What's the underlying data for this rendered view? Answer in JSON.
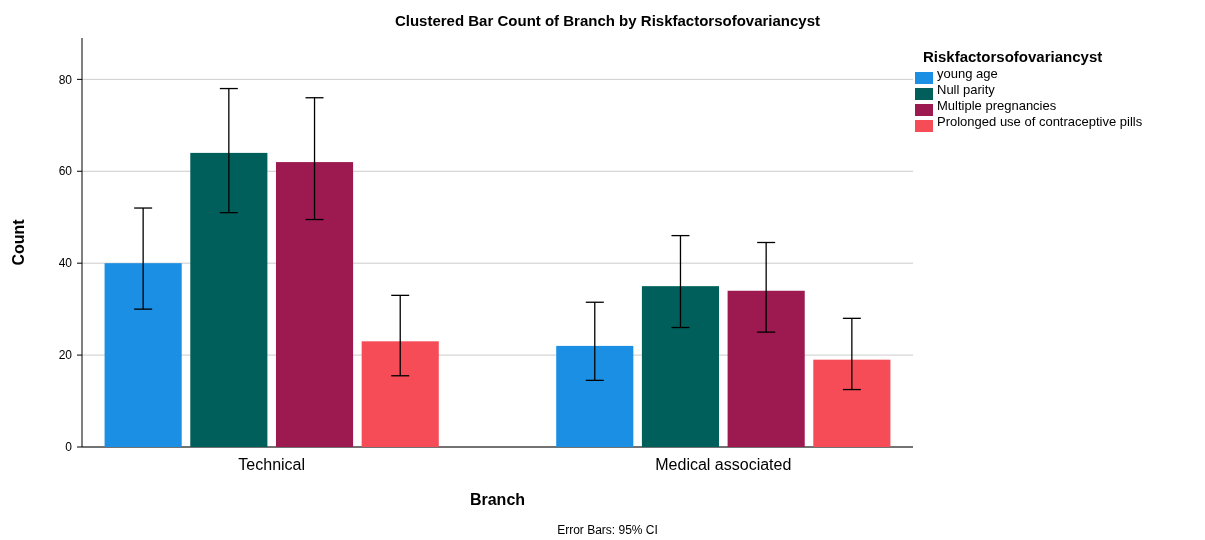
{
  "chart_data": {
    "type": "bar",
    "title": "Clustered Bar Count of Branch by Riskfactorsofovariancyst",
    "xlabel": "Branch",
    "ylabel": "Count",
    "legend_title": "Riskfactorsofovariancyst",
    "annotations": [
      "Error Bars: 95% CI"
    ],
    "categories": [
      "Technical",
      "Medical associated"
    ],
    "series": [
      {
        "name": "young age",
        "color": "#1a8fe3",
        "values": [
          40,
          22
        ],
        "errors": [
          [
            30,
            52
          ],
          [
            14.5,
            31.5
          ]
        ]
      },
      {
        "name": "Null parity",
        "color": "#005f5a",
        "values": [
          64,
          35
        ],
        "errors": [
          [
            51,
            78
          ],
          [
            26,
            46
          ]
        ]
      },
      {
        "name": "Multiple pregnancies",
        "color": "#9c1a50",
        "values": [
          62,
          34
        ],
        "errors": [
          [
            49.5,
            76
          ],
          [
            25,
            44.5
          ]
        ]
      },
      {
        "name": "Prolonged use of contraceptive pills",
        "color": "#f54c57",
        "values": [
          23,
          19
        ],
        "errors": [
          [
            15.5,
            33
          ],
          [
            12.5,
            28
          ]
        ]
      }
    ],
    "ylim": [
      0,
      89
    ],
    "yticks": [
      0,
      20,
      40,
      60,
      80
    ],
    "grid": "y",
    "legend": "top right"
  }
}
